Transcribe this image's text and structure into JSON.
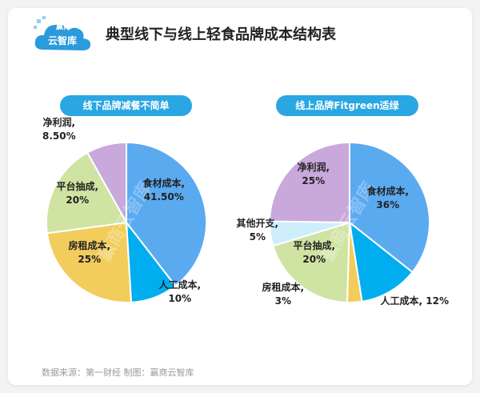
{
  "title": "典型线下与线上轻食品牌成本结构表",
  "logo": {
    "top": "赢商",
    "main": "云智库"
  },
  "source": "数据来源：第一财经  制图：赢商云智库",
  "watermark": "赢商云智库",
  "colors": {
    "food": "#5aaaf0",
    "labor": "#00aeef",
    "rent": "#f2cd5c",
    "platform": "#cfe4a2",
    "other": "#cdeefa",
    "profit": "#c9a8dc",
    "accent": "#2aa6e3"
  },
  "chart_data": [
    {
      "type": "pie",
      "title": "线下品牌减餐不简单",
      "slices": [
        {
          "label": "食材成本,",
          "value": 41.5,
          "text": "41.50%",
          "color": "food"
        },
        {
          "label": "人工成本,",
          "value": 10,
          "text": "10%",
          "color": "labor"
        },
        {
          "label": "房租成本,",
          "value": 25,
          "text": "25%",
          "color": "rent"
        },
        {
          "label": "平台抽成,",
          "value": 20,
          "text": "20%",
          "color": "platform"
        },
        {
          "label": "净利润,",
          "value": 8.5,
          "text": "8.50%",
          "color": "profit"
        }
      ]
    },
    {
      "type": "pie",
      "title": "线上品牌Fitgreen适绿",
      "slices": [
        {
          "label": "食材成本,",
          "value": 36,
          "text": "36%",
          "color": "food"
        },
        {
          "label": "人工成本,",
          "value": 12,
          "text": "12%",
          "color": "labor"
        },
        {
          "label": "房租成本,",
          "value": 3,
          "text": "3%",
          "color": "rent"
        },
        {
          "label": "平台抽成,",
          "value": 20,
          "text": "20%",
          "color": "platform"
        },
        {
          "label": "其他开支,",
          "value": 5,
          "text": "5%",
          "color": "other"
        },
        {
          "label": "净利润,",
          "value": 25,
          "text": "25%",
          "color": "profit"
        }
      ]
    }
  ]
}
